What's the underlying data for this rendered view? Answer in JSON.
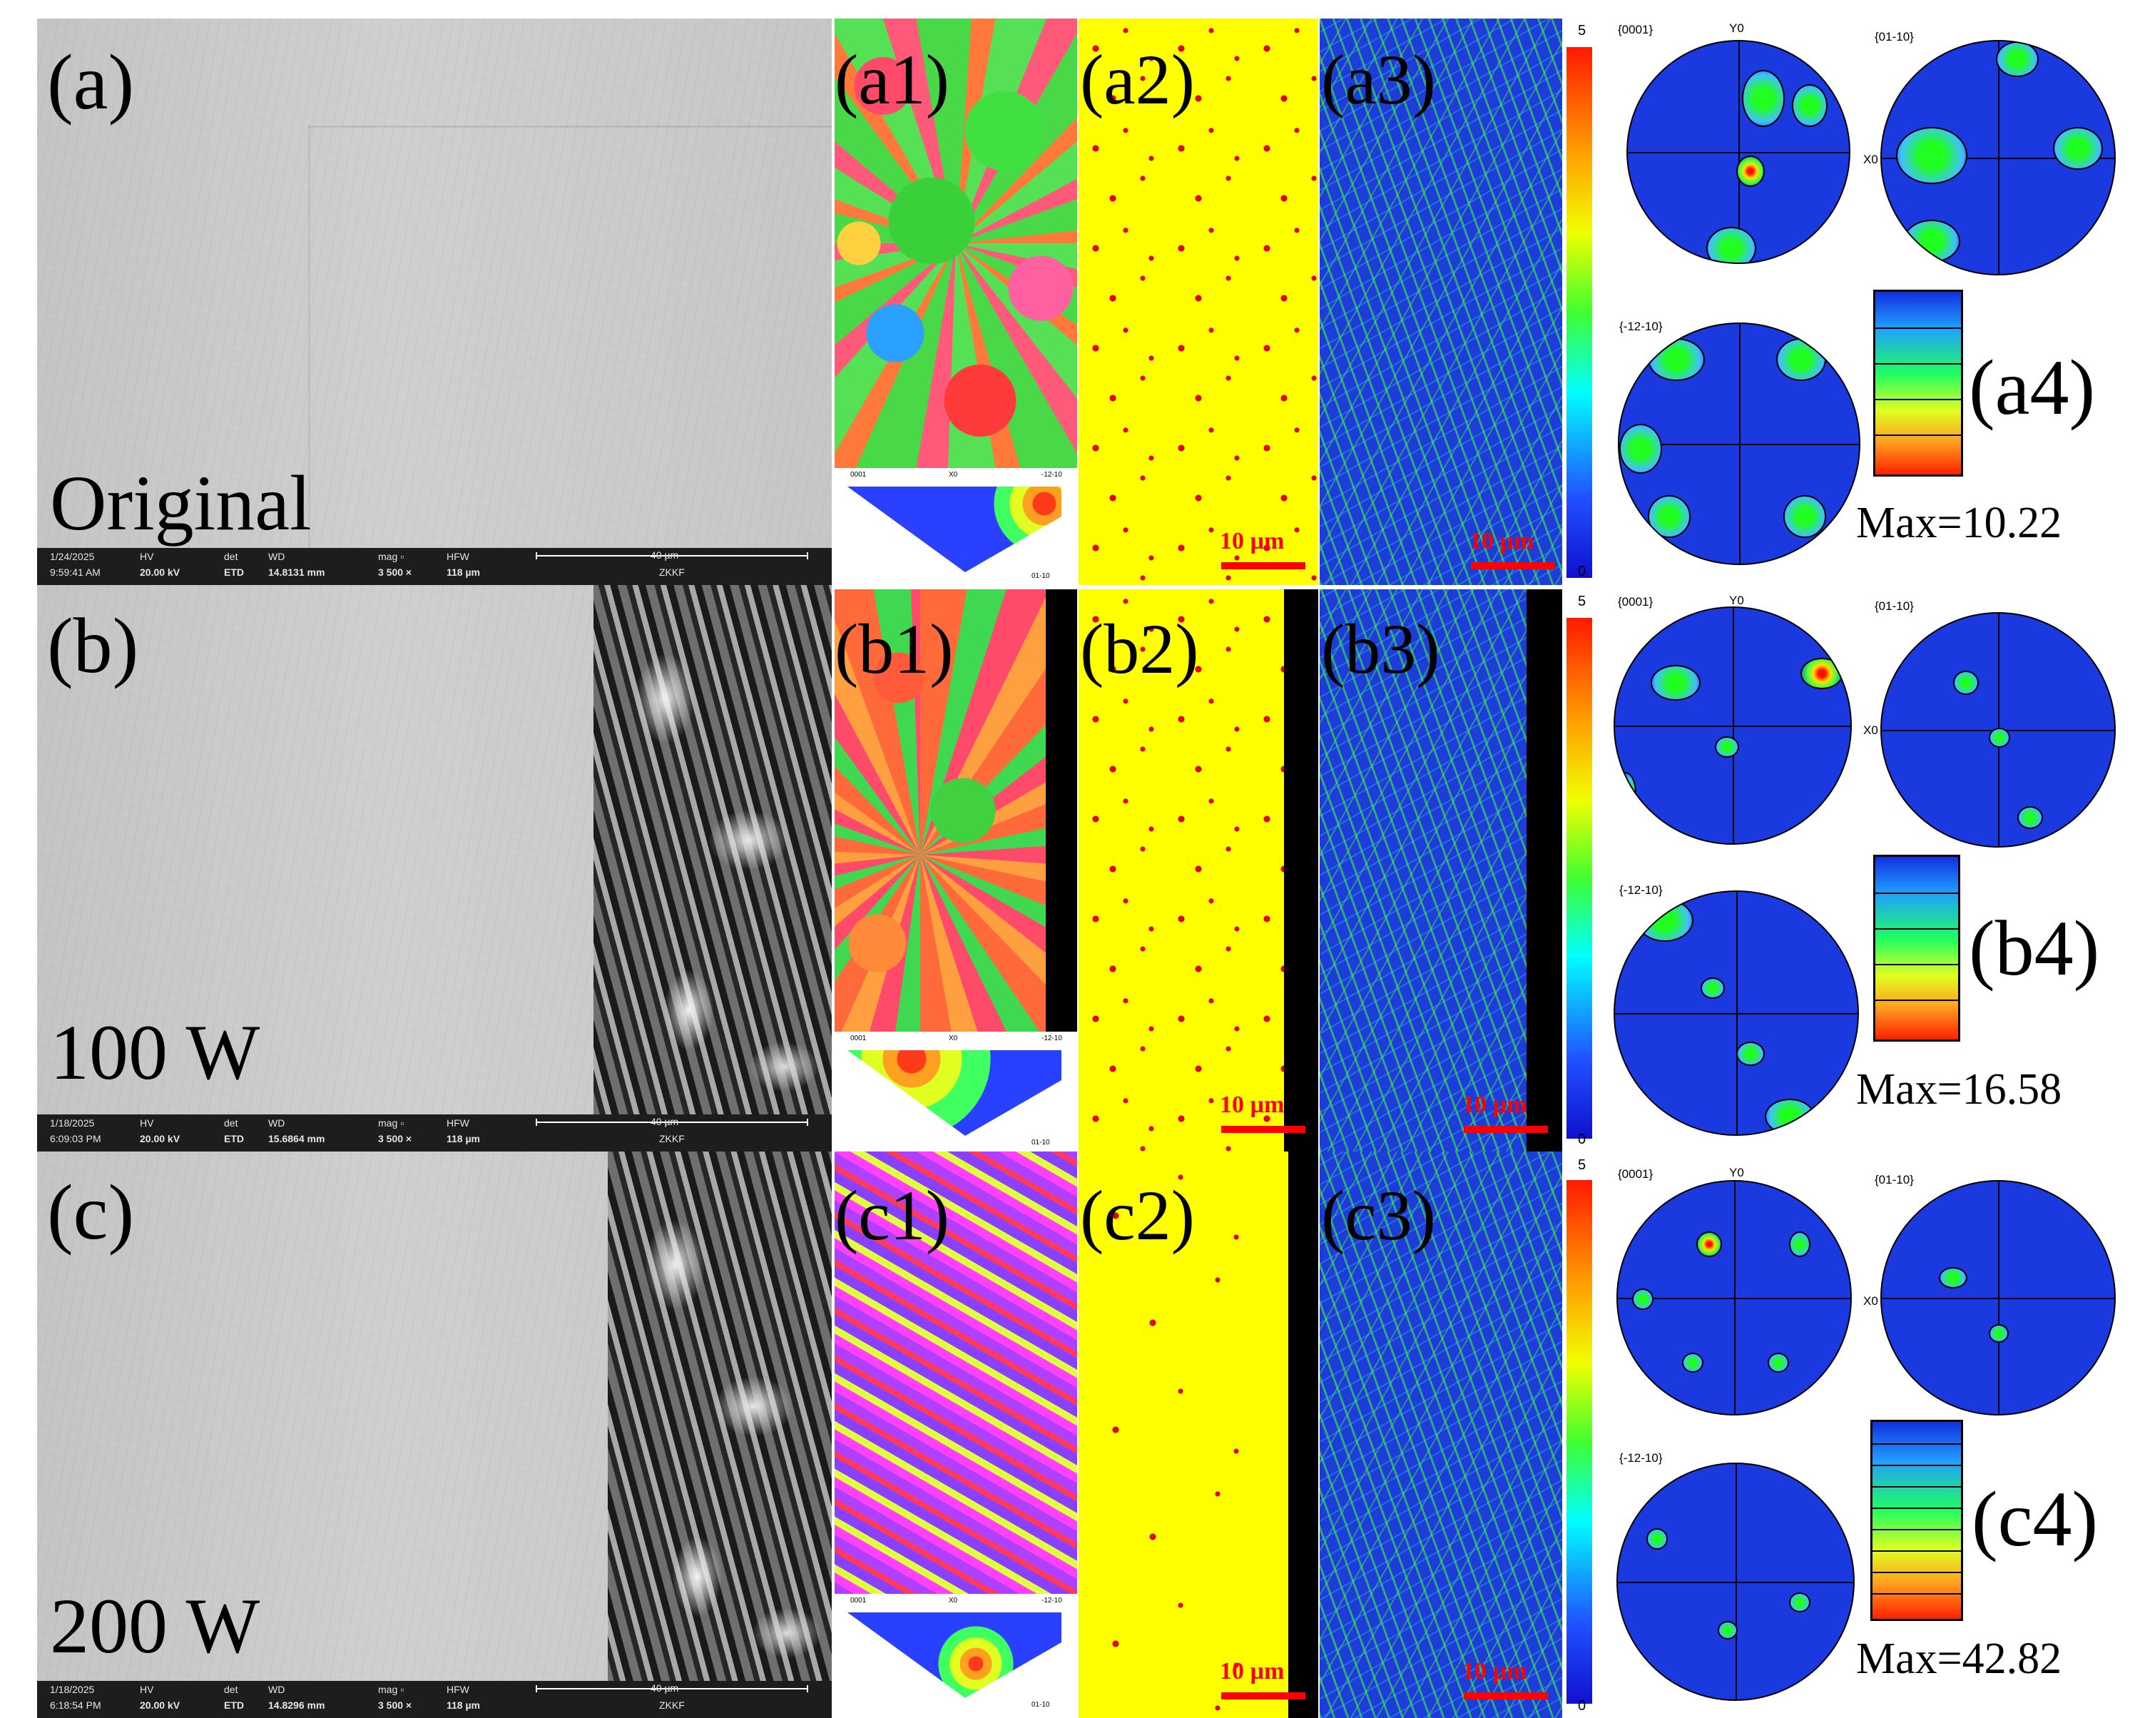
{
  "rows": [
    {
      "id": "a",
      "sem_label": "(a)",
      "condition_label": "Original",
      "sem_info": {
        "date": "1/24/2025",
        "time": "9:59:41 AM",
        "hv_label": "HV",
        "hv": "20.00 kV",
        "det_label": "det",
        "det": "ETD",
        "wd_label": "WD",
        "wd": "14.8131 mm",
        "mag_label": "mag ▫",
        "mag": "3 500 ×",
        "hfw_label": "HFW",
        "hfw": "118 µm",
        "scale": "40 µm",
        "org": "ZKKF"
      },
      "ipf_label": "(a1)",
      "phase_label": "(a2)",
      "kam_label": "(a3)",
      "pf_label": "(a4)",
      "pf_max": "Max=10.22",
      "scale_label": "10 µm"
    },
    {
      "id": "b",
      "sem_label": "(b)",
      "condition_label": "100 W",
      "sem_info": {
        "date": "1/18/2025",
        "time": "6:09:03 PM",
        "hv_label": "HV",
        "hv": "20.00 kV",
        "det_label": "det",
        "det": "ETD",
        "wd_label": "WD",
        "wd": "15.6864 mm",
        "mag_label": "mag ▫",
        "mag": "3 500 ×",
        "hfw_label": "HFW",
        "hfw": "118 µm",
        "scale": "40 µm",
        "org": "ZKKF"
      },
      "ipf_label": "(b1)",
      "phase_label": "(b2)",
      "kam_label": "(b3)",
      "pf_label": "(b4)",
      "pf_max": "Max=16.58",
      "scale_label": "10 µm"
    },
    {
      "id": "c",
      "sem_label": "(c)",
      "condition_label": "200 W",
      "sem_info": {
        "date": "1/18/2025",
        "time": "6:18:54 PM",
        "hv_label": "HV",
        "hv": "20.00 kV",
        "det_label": "det",
        "det": "ETD",
        "wd_label": "WD",
        "wd": "14.8296 mm",
        "mag_label": "mag ▫",
        "mag": "3 500 ×",
        "hfw_label": "HFW",
        "hfw": "118 µm",
        "scale": "40 µm",
        "org": "ZKKF"
      },
      "ipf_label": "(c1)",
      "phase_label": "(c2)",
      "kam_label": "(c3)",
      "pf_label": "(c4)",
      "pf_max": "Max=42.82",
      "scale_label": "10 µm"
    }
  ],
  "ipf_triangle": {
    "corner_0001": "0001",
    "corner_1210": "-12-10",
    "corner_0110": "01-10",
    "mid": "X0"
  },
  "kam_colorbar": {
    "max": "5",
    "min": "0"
  },
  "pole_figure_titles": {
    "p0001": "{0001}",
    "p0110": "{01-10}",
    "p1210": "{-12-10}",
    "y_axis": "Y0",
    "x_axis": "X0"
  },
  "colors": {
    "phase_matrix": "#ffff00",
    "phase_minor": "#e0001a",
    "kam_background": "#1e3cd8",
    "scalebar": "#ff0000"
  }
}
